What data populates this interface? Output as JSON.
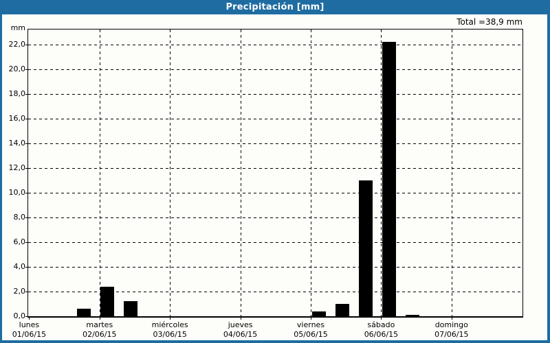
{
  "header": {
    "title": "Precipitación [mm]"
  },
  "summary": {
    "total_label": "Total =38,9 mm",
    "total_mm": 38.9
  },
  "colors": {
    "titlebar_blue": "#1e6ca1",
    "panel_border_blue": "#1e6ca1",
    "background": "#fdfdfa",
    "bar": "#000000",
    "grid": "#000000",
    "title_text": "#ffffff"
  },
  "chart_data": {
    "type": "bar",
    "title": "Precipitación [mm]",
    "ylabel": "mm",
    "unit": "mm",
    "ylim": [
      0,
      23.2
    ],
    "grid": "dashed",
    "legend": "none",
    "yticks": [
      0,
      2,
      4,
      6,
      8,
      10,
      12,
      14,
      16,
      18,
      20,
      22
    ],
    "ytick_labels": [
      "0,0",
      "2,0",
      "4,0",
      "6,0",
      "8,0",
      "10,0",
      "12,0",
      "14,0",
      "16,0",
      "18,0",
      "20,0",
      "22,0"
    ],
    "x_days": [
      {
        "name": "lunes",
        "date": "01/06/15"
      },
      {
        "name": "martes",
        "date": "02/06/15"
      },
      {
        "name": "miércoles",
        "date": "03/06/15"
      },
      {
        "name": "jueves",
        "date": "04/06/15"
      },
      {
        "name": "viernes",
        "date": "05/06/15"
      },
      {
        "name": "sábado",
        "date": "06/06/15"
      },
      {
        "name": "domingo",
        "date": "07/06/15"
      }
    ],
    "slots_per_day": 3,
    "bars": [
      {
        "day": "lunes",
        "date": "01/06/15",
        "slot": 2,
        "value_mm": 0.6
      },
      {
        "day": "martes",
        "date": "02/06/15",
        "slot": 3,
        "value_mm": 2.4
      },
      {
        "day": "martes",
        "date": "02/06/15",
        "slot": 4,
        "value_mm": 1.2
      },
      {
        "day": "viernes",
        "date": "05/06/15",
        "slot": 12,
        "value_mm": 0.4
      },
      {
        "day": "viernes",
        "date": "05/06/15",
        "slot": 13,
        "value_mm": 1.0
      },
      {
        "day": "viernes",
        "date": "05/06/15",
        "slot": 14,
        "value_mm": 11.0
      },
      {
        "day": "sábado",
        "date": "06/06/15",
        "slot": 15,
        "value_mm": 22.2
      },
      {
        "day": "sábado",
        "date": "06/06/15",
        "slot": 16,
        "value_mm": 0.1
      }
    ],
    "total_mm": 38.9
  }
}
